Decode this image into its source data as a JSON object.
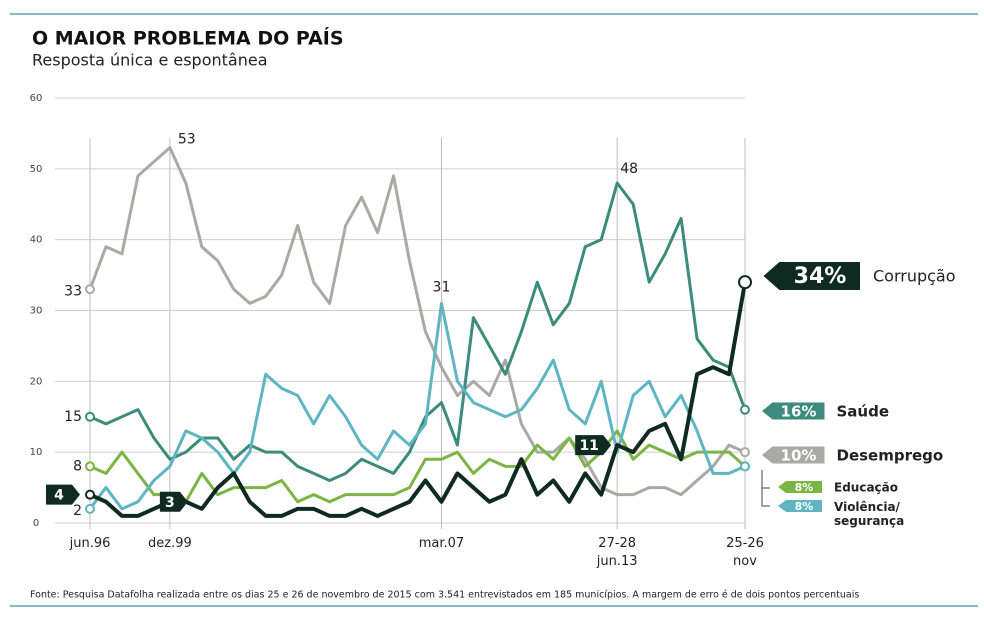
{
  "chart_data": {
    "type": "line",
    "title": "O MAIOR PROBLEMA DO PAÍS",
    "subtitle": "Resposta única e espontânea",
    "source": "Fonte: Pesquisa Datafolha realizada entre os dias 25 e 26 de novembro de 2015 com 3.541 entrevistados em 185 municípios. A margem de erro é de dois pontos percentuais",
    "categories": [
      "jun.96",
      null,
      null,
      null,
      null,
      "dez.99",
      null,
      null,
      null,
      null,
      null,
      null,
      null,
      null,
      null,
      null,
      null,
      null,
      null,
      null,
      null,
      null,
      "mar.07",
      null,
      null,
      null,
      null,
      null,
      null,
      null,
      null,
      null,
      null,
      "27-28\njun.13",
      null,
      null,
      null,
      null,
      null,
      null,
      null,
      "25-26\nnov"
    ],
    "ylim": [
      0,
      60
    ],
    "yticks": [
      0,
      10,
      20,
      30,
      40,
      50,
      60
    ],
    "grid": true,
    "series": [
      {
        "name": "Desemprego",
        "color": "#a9aaa8",
        "values": [
          33,
          39,
          38,
          49,
          51,
          53,
          48,
          39,
          37,
          33,
          31,
          32,
          35,
          42,
          34,
          31,
          42,
          46,
          41,
          49,
          37,
          27,
          22,
          18,
          20,
          18,
          23,
          14,
          10,
          10,
          12,
          9,
          5,
          4,
          4,
          5,
          5,
          4,
          6,
          8,
          11,
          10
        ],
        "value_labels": [
          null,
          null,
          null,
          null,
          null,
          null,
          null,
          null,
          null,
          null,
          null,
          null,
          null,
          null,
          null,
          null,
          null,
          null,
          null,
          null,
          null,
          null,
          null,
          null,
          null,
          null,
          null,
          null,
          null,
          null,
          null,
          null,
          null,
          null,
          null,
          null,
          null,
          null,
          null,
          null,
          null,
          "10%"
        ]
      },
      {
        "name": "Saúde",
        "color": "#3d8b7c",
        "values": [
          15,
          14,
          15,
          16,
          12,
          9,
          10,
          12,
          12,
          9,
          11,
          10,
          10,
          8,
          7,
          6,
          7,
          9,
          8,
          7,
          10,
          15,
          17,
          11,
          29,
          25,
          21,
          27,
          34,
          28,
          31,
          39,
          40,
          48,
          45,
          34,
          38,
          43,
          26,
          23,
          22,
          16
        ],
        "value_labels": [
          null,
          null,
          null,
          null,
          null,
          null,
          null,
          null,
          null,
          null,
          null,
          null,
          null,
          null,
          null,
          null,
          null,
          null,
          null,
          null,
          null,
          null,
          null,
          null,
          null,
          null,
          null,
          null,
          null,
          null,
          null,
          null,
          null,
          null,
          null,
          null,
          null,
          null,
          null,
          null,
          null,
          "16%"
        ]
      },
      {
        "name": "Educação",
        "color": "#7cb446",
        "values": [
          8,
          7,
          10,
          7,
          4,
          4,
          3,
          7,
          4,
          5,
          5,
          5,
          6,
          3,
          4,
          3,
          4,
          4,
          4,
          4,
          5,
          9,
          9,
          10,
          7,
          9,
          8,
          8,
          11,
          9,
          12,
          8,
          10,
          13,
          9,
          11,
          10,
          9,
          10,
          10,
          10,
          8
        ],
        "value_labels": [
          null,
          null,
          null,
          null,
          null,
          null,
          null,
          null,
          null,
          null,
          null,
          null,
          null,
          null,
          null,
          null,
          null,
          null,
          null,
          null,
          null,
          null,
          null,
          null,
          null,
          null,
          null,
          null,
          null,
          null,
          null,
          null,
          null,
          null,
          null,
          null,
          null,
          null,
          null,
          null,
          null,
          "8%"
        ]
      },
      {
        "name": "Violência/ segurança",
        "color": "#5fb5c1",
        "values": [
          2,
          5,
          2,
          3,
          6,
          8,
          13,
          12,
          10,
          7,
          10,
          21,
          19,
          18,
          14,
          18,
          15,
          11,
          9,
          13,
          11,
          14,
          31,
          20,
          17,
          16,
          15,
          16,
          19,
          23,
          16,
          14,
          20,
          10,
          18,
          20,
          15,
          18,
          13,
          7,
          7,
          8
        ],
        "value_labels": [
          null,
          null,
          null,
          null,
          null,
          null,
          null,
          null,
          null,
          null,
          null,
          null,
          null,
          null,
          null,
          null,
          null,
          null,
          null,
          null,
          null,
          null,
          null,
          null,
          null,
          null,
          null,
          null,
          null,
          null,
          null,
          null,
          null,
          null,
          null,
          null,
          null,
          null,
          null,
          null,
          null,
          "8%"
        ]
      },
      {
        "name": "Corrupção",
        "color": "#0f2a20",
        "values": [
          4,
          3,
          1,
          1,
          2,
          3,
          3,
          2,
          5,
          7,
          3,
          1,
          1,
          2,
          2,
          1,
          1,
          2,
          1,
          2,
          3,
          6,
          3,
          7,
          5,
          3,
          4,
          9,
          4,
          6,
          3,
          7,
          4,
          11,
          10,
          13,
          14,
          9,
          21,
          22,
          21,
          34
        ],
        "value_labels": [
          null,
          null,
          null,
          null,
          null,
          null,
          null,
          null,
          null,
          null,
          null,
          null,
          null,
          null,
          null,
          null,
          null,
          null,
          null,
          null,
          null,
          null,
          null,
          null,
          null,
          null,
          null,
          null,
          null,
          null,
          null,
          null,
          null,
          null,
          null,
          null,
          null,
          null,
          null,
          null,
          null,
          "34%"
        ]
      }
    ]
  }
}
